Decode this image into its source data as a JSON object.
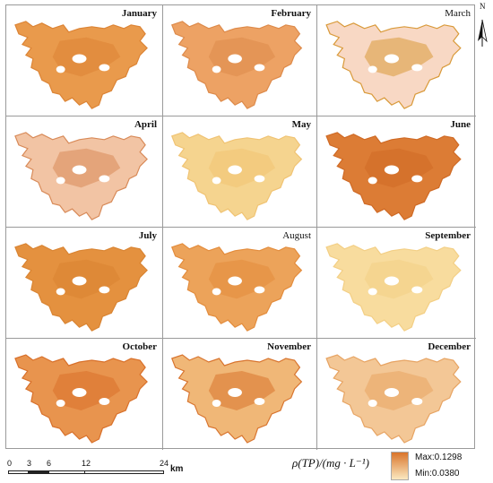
{
  "panels": [
    {
      "month": "January",
      "fill": "#e99a4c",
      "accent": "#dc8435",
      "bold": true
    },
    {
      "month": "February",
      "fill": "#eda264",
      "accent": "#dd8a4a",
      "bold": true
    },
    {
      "month": "March",
      "fill": "#f8d8c4",
      "accent": "#d99a3a",
      "bold": false
    },
    {
      "month": "April",
      "fill": "#f2c4a4",
      "accent": "#d88a58",
      "bold": true
    },
    {
      "month": "May",
      "fill": "#f5d48f",
      "accent": "#f0c373",
      "bold": true
    },
    {
      "month": "June",
      "fill": "#dc7c35",
      "accent": "#cf6a25",
      "bold": true
    },
    {
      "month": "July",
      "fill": "#e4913f",
      "accent": "#d98432",
      "bold": true
    },
    {
      "month": "August",
      "fill": "#eca35a",
      "accent": "#e38c3c",
      "bold": false
    },
    {
      "month": "September",
      "fill": "#f8dc9e",
      "accent": "#f3cf85",
      "bold": true
    },
    {
      "month": "October",
      "fill": "#e8944e",
      "accent": "#d8702a",
      "bold": true
    },
    {
      "month": "November",
      "fill": "#f0b777",
      "accent": "#d8742e",
      "bold": true
    },
    {
      "month": "December",
      "fill": "#f3c796",
      "accent": "#e7a463",
      "bold": true
    }
  ],
  "north_label": "N",
  "scale": {
    "ticks": [
      "0",
      "3",
      "6",
      "12",
      "24"
    ],
    "unit": "km"
  },
  "legend": {
    "title": "ρ(TP)/(mg · L⁻¹)",
    "max_label": "Max:0.1298",
    "min_label": "Min:0.0380",
    "max_color": "#d9742a",
    "min_color": "#fbe9c0"
  }
}
